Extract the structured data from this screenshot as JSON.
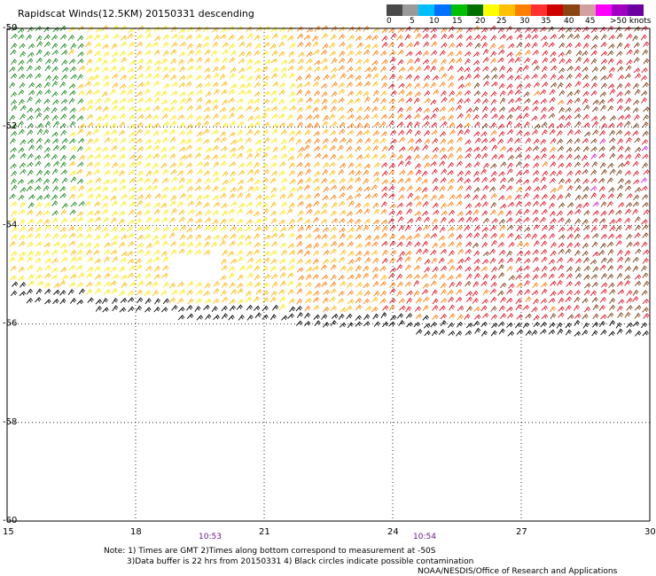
{
  "title": "Rapidscat Winds(12.5KM) 20150331 descending",
  "legend": {
    "labels": [
      "0",
      "5",
      "10",
      "15",
      "20",
      "25",
      "30",
      "35",
      "40",
      "45",
      ">50 knots"
    ],
    "colors": [
      "#4a4a4a",
      "#9a9a9a",
      "#00bfff",
      "#0070ff",
      "#00c000",
      "#007000",
      "#ffff00",
      "#ffc000",
      "#ff8000",
      "#ff3030",
      "#d00000",
      "#8b4513",
      "#d2a0a0",
      "#ff00ff",
      "#a000c0",
      "#6a00a0"
    ]
  },
  "map": {
    "lon_ticks": [
      "15",
      "18",
      "21",
      "24",
      "27",
      "30"
    ],
    "lat_ticks": [
      "-50",
      "-52",
      "-54",
      "-56",
      "-58",
      "-60"
    ],
    "lon_range": [
      15,
      30
    ],
    "lat_range": [
      -50,
      -60
    ],
    "swath_times": [
      "10:53",
      "10:54"
    ]
  },
  "notes": {
    "line1": "Note: 1) Times are GMT 2)Times along bottom correspond to measurement at -50S",
    "line2": "3)Data buffer is 22 hrs from 20150331 4) Black circles indicate possible contamination",
    "credit": "NOAA/NESDIS/Office of Research and Applications"
  },
  "speed_colors": {
    "green": "#1a8a1a",
    "yellow": "#ffe800",
    "gold": "#ffb800",
    "orange": "#ff7a00",
    "red": "#e01020",
    "brown": "#7a3b10",
    "magenta": "#d020d0",
    "black": "#000000"
  }
}
